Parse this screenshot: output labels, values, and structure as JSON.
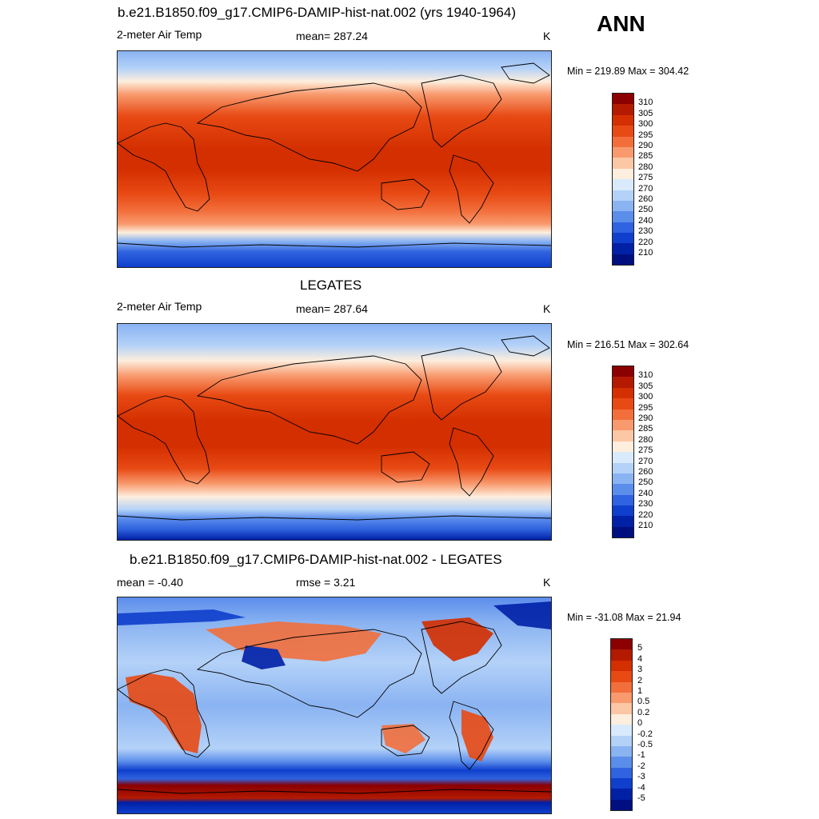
{
  "panels": [
    {
      "id": "model",
      "title": "b.e21.B1850.f09_g17.CMIP6-DAMIP-hist-nat.002 (yrs 1940-1964)",
      "left_label": "2-meter Air Temp",
      "center_label": "mean= 287.24",
      "right_label": "K",
      "minmax": "Min = 219.89 Max = 304.42",
      "colorbar_labels": [
        "310",
        "305",
        "300",
        "295",
        "290",
        "285",
        "280",
        "275",
        "270",
        "260",
        "250",
        "240",
        "230",
        "220",
        "210"
      ]
    },
    {
      "id": "obs",
      "title": "LEGATES",
      "left_label": "2-meter Air Temp",
      "center_label": "mean= 287.64",
      "right_label": "K",
      "minmax": "Min = 216.51 Max = 302.64",
      "colorbar_labels": [
        "310",
        "305",
        "300",
        "295",
        "290",
        "285",
        "280",
        "275",
        "270",
        "260",
        "250",
        "240",
        "230",
        "220",
        "210"
      ]
    },
    {
      "id": "diff",
      "title": "b.e21.B1850.f09_g17.CMIP6-DAMIP-hist-nat.002 - LEGATES",
      "left_label": "mean =  -0.40",
      "center_label": "rmse =   3.21",
      "right_label": "K",
      "minmax": "Min = -31.08 Max =  21.94",
      "colorbar_labels": [
        "5",
        "4",
        "3",
        "2",
        "1",
        "0.5",
        "0.2",
        "0",
        "-0.2",
        "-0.5",
        "-1",
        "-2",
        "-3",
        "-4",
        "-5"
      ]
    }
  ],
  "season": "ANN",
  "colors": {
    "temp_scale": [
      "#8b0000",
      "#b31a00",
      "#d42f00",
      "#e84a14",
      "#f26f3c",
      "#f89a6e",
      "#fcc7a4",
      "#fdeedd",
      "#d9eafc",
      "#b4d2f8",
      "#8ab3f2",
      "#5b8deb",
      "#2f63df",
      "#0f3fcc",
      "#0020a6",
      "#000f80"
    ],
    "diff_scale": [
      "#8b0000",
      "#b31a00",
      "#d42f00",
      "#e84a14",
      "#f26f3c",
      "#f89a6e",
      "#fcc7a4",
      "#fdeedd",
      "#d9eafc",
      "#b4d2f8",
      "#8ab3f2",
      "#5b8deb",
      "#2f63df",
      "#0f3fcc",
      "#0020a6",
      "#000f80"
    ]
  }
}
